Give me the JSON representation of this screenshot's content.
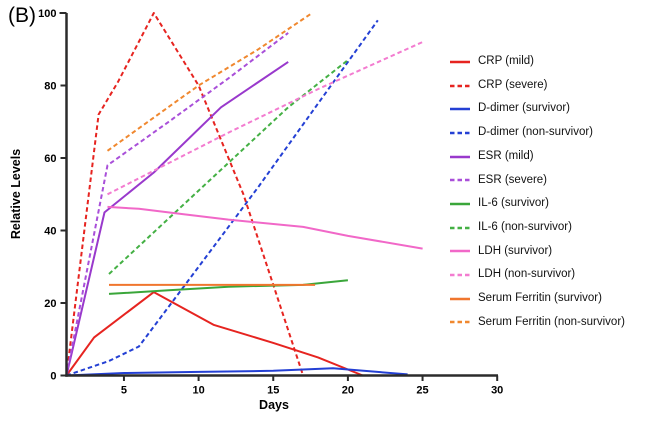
{
  "chart_data": {
    "type": "line",
    "panel_label": "(B)",
    "title": "",
    "xlabel": "Days",
    "ylabel": "Relative Levels",
    "xlim": [
      1,
      30
    ],
    "ylim": [
      0,
      100
    ],
    "x_ticks": [
      5,
      10,
      15,
      20,
      25,
      30
    ],
    "y_ticks": [
      0,
      20,
      40,
      60,
      80,
      100
    ],
    "grid": false,
    "legend_position": "right",
    "axis_color": "#2b2b2b",
    "series": [
      {
        "name": "CRP (mild)",
        "color": "#e62420",
        "dash": "solid",
        "points": [
          [
            1,
            0
          ],
          [
            3,
            10.5
          ],
          [
            7,
            23
          ],
          [
            11,
            14
          ],
          [
            15,
            9
          ],
          [
            18,
            5
          ],
          [
            21,
            0
          ]
        ]
      },
      {
        "name": "CRP (severe)",
        "color": "#e62420",
        "dash": "dashed",
        "points": [
          [
            1,
            0
          ],
          [
            3.3,
            72
          ],
          [
            4.6,
            81
          ],
          [
            7,
            100
          ],
          [
            10,
            80
          ],
          [
            13,
            50
          ],
          [
            15,
            25
          ],
          [
            17,
            0
          ]
        ]
      },
      {
        "name": "D-dimer (survivor)",
        "color": "#2440d4",
        "dash": "solid",
        "points": [
          [
            1,
            0
          ],
          [
            5,
            0.7
          ],
          [
            10,
            1
          ],
          [
            15,
            1.3
          ],
          [
            19,
            2
          ],
          [
            24,
            0.3
          ]
        ]
      },
      {
        "name": "D-dimer (non-survivor)",
        "color": "#2440d4",
        "dash": "dashed",
        "points": [
          [
            1,
            0
          ],
          [
            4,
            4
          ],
          [
            6,
            8
          ],
          [
            10,
            30
          ],
          [
            14,
            52
          ],
          [
            18,
            75
          ],
          [
            22,
            98
          ]
        ]
      },
      {
        "name": "ESR (mild)",
        "color": "#9939cc",
        "dash": "solid",
        "points": [
          [
            1,
            0
          ],
          [
            3.7,
            45
          ],
          [
            7,
            56
          ],
          [
            11.5,
            74
          ],
          [
            16,
            86.5
          ]
        ]
      },
      {
        "name": "ESR (severe)",
        "color": "#a94fd9",
        "dash": "dashed",
        "points": [
          [
            1,
            0
          ],
          [
            3.9,
            58
          ],
          [
            8,
            70
          ],
          [
            12,
            82
          ],
          [
            16,
            94.5
          ]
        ]
      },
      {
        "name": "IL-6 (survivor)",
        "color": "#3aa63a",
        "dash": "solid",
        "points": [
          [
            4,
            22.5
          ],
          [
            8,
            23.5
          ],
          [
            12,
            24.5
          ],
          [
            17,
            25
          ],
          [
            20,
            26.3
          ]
        ]
      },
      {
        "name": "IL-6 (non-survivor)",
        "color": "#44b044",
        "dash": "dashed",
        "points": [
          [
            4,
            28
          ],
          [
            10,
            51
          ],
          [
            16,
            74
          ],
          [
            20,
            87
          ]
        ]
      },
      {
        "name": "LDH (survivor)",
        "color": "#f168c8",
        "dash": "solid",
        "points": [
          [
            3.9,
            46.5
          ],
          [
            6,
            46
          ],
          [
            9,
            44.5
          ],
          [
            12,
            43
          ],
          [
            17,
            41
          ],
          [
            20,
            38.5
          ],
          [
            25,
            35
          ]
        ]
      },
      {
        "name": "LDH (non-survivor)",
        "color": "#f37cd0",
        "dash": "dashed",
        "points": [
          [
            3.9,
            50
          ],
          [
            12,
            67
          ],
          [
            18,
            79
          ],
          [
            25,
            92
          ]
        ]
      },
      {
        "name": "Serum Ferritin (survivor)",
        "color": "#f0762e",
        "dash": "solid",
        "points": [
          [
            4,
            25
          ],
          [
            10,
            25
          ],
          [
            17.8,
            25
          ]
        ]
      },
      {
        "name": "Serum Ferritin (non-survivor)",
        "color": "#f0882f",
        "dash": "dashed",
        "points": [
          [
            3.9,
            62
          ],
          [
            10,
            80
          ],
          [
            14,
            90
          ],
          [
            17.6,
            100
          ]
        ]
      }
    ]
  }
}
